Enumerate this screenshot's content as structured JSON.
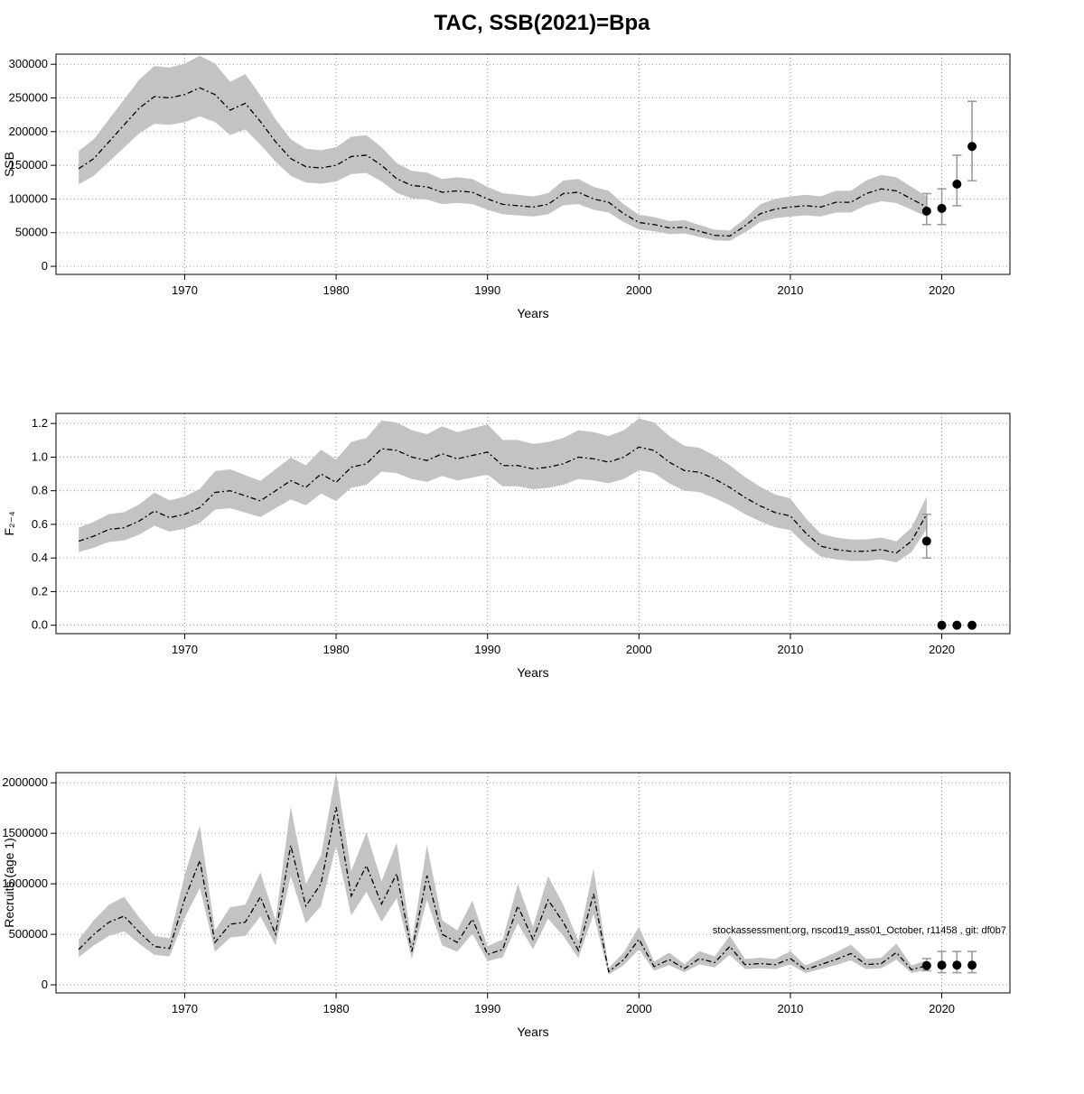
{
  "title": "TAC, SSB(2021)=Bpa",
  "chart_data": [
    {
      "type": "line",
      "name": "ssb",
      "xlabel": "Years",
      "ylabel": "SSB",
      "xlim": [
        1961.5,
        2024.5
      ],
      "ylim": [
        -12000,
        315000
      ],
      "xticks": [
        1970,
        1980,
        1990,
        2000,
        2010,
        2020
      ],
      "yticks": [
        0,
        50000,
        100000,
        150000,
        200000,
        250000,
        300000
      ],
      "ytick_labels": [
        "0",
        "50000",
        "100000",
        "150000",
        "200000",
        "250000",
        "300000"
      ],
      "years": [
        1963,
        1964,
        1965,
        1966,
        1967,
        1968,
        1969,
        1970,
        1971,
        1972,
        1973,
        1974,
        1975,
        1976,
        1977,
        1978,
        1979,
        1980,
        1981,
        1982,
        1983,
        1984,
        1985,
        1986,
        1987,
        1988,
        1989,
        1990,
        1991,
        1992,
        1993,
        1994,
        1995,
        1996,
        1997,
        1998,
        1999,
        2000,
        2001,
        2002,
        2003,
        2004,
        2005,
        2006,
        2007,
        2008,
        2009,
        2010,
        2011,
        2012,
        2013,
        2014,
        2015,
        2016,
        2017,
        2018,
        2019
      ],
      "median": [
        145000,
        160000,
        185000,
        210000,
        235000,
        252000,
        250000,
        255000,
        265000,
        255000,
        232000,
        242000,
        215000,
        185000,
        160000,
        148000,
        146000,
        150000,
        163000,
        165000,
        150000,
        130000,
        120000,
        118000,
        110000,
        112000,
        110000,
        100000,
        92000,
        90000,
        88000,
        92000,
        108000,
        110000,
        100000,
        95000,
        78000,
        65000,
        62000,
        57000,
        58000,
        52000,
        46000,
        45000,
        60000,
        78000,
        85000,
        88000,
        90000,
        88000,
        95000,
        95000,
        108000,
        115000,
        112000,
        100000,
        88000
      ],
      "ci_factor": [
        0.84,
        1.18
      ],
      "forecast": {
        "years": [
          2019,
          2020,
          2021,
          2022
        ],
        "values": [
          82000,
          86000,
          122000,
          178000
        ],
        "lo": [
          62000,
          62000,
          90000,
          127000
        ],
        "hi": [
          108000,
          115000,
          165000,
          245000
        ]
      }
    },
    {
      "type": "line",
      "name": "f",
      "xlabel": "Years",
      "ylabel": "F₂₋₄",
      "xlim": [
        1961.5,
        2024.5
      ],
      "ylim": [
        -0.05,
        1.26
      ],
      "xticks": [
        1970,
        1980,
        1990,
        2000,
        2010,
        2020
      ],
      "yticks": [
        0.0,
        0.2,
        0.4,
        0.6,
        0.8,
        1.0,
        1.2
      ],
      "ytick_labels": [
        "0.0",
        "0.2",
        "0.4",
        "0.6",
        "0.8",
        "1.0",
        "1.2"
      ],
      "years": [
        1963,
        1964,
        1965,
        1966,
        1967,
        1968,
        1969,
        1970,
        1971,
        1972,
        1973,
        1974,
        1975,
        1976,
        1977,
        1978,
        1979,
        1980,
        1981,
        1982,
        1983,
        1984,
        1985,
        1986,
        1987,
        1988,
        1989,
        1990,
        1991,
        1992,
        1993,
        1994,
        1995,
        1996,
        1997,
        1998,
        1999,
        2000,
        2001,
        2002,
        2003,
        2004,
        2005,
        2006,
        2007,
        2008,
        2009,
        2010,
        2011,
        2012,
        2013,
        2014,
        2015,
        2016,
        2017,
        2018,
        2019
      ],
      "median": [
        0.5,
        0.53,
        0.57,
        0.58,
        0.62,
        0.68,
        0.64,
        0.66,
        0.7,
        0.79,
        0.8,
        0.77,
        0.74,
        0.8,
        0.86,
        0.82,
        0.9,
        0.85,
        0.94,
        0.96,
        1.05,
        1.04,
        1.0,
        0.98,
        1.02,
        0.99,
        1.01,
        1.03,
        0.95,
        0.95,
        0.93,
        0.94,
        0.96,
        1.0,
        0.99,
        0.97,
        1.0,
        1.06,
        1.04,
        0.97,
        0.92,
        0.91,
        0.87,
        0.82,
        0.76,
        0.71,
        0.67,
        0.65,
        0.55,
        0.47,
        0.45,
        0.44,
        0.44,
        0.45,
        0.43,
        0.5,
        0.66
      ],
      "ci_factor": [
        0.87,
        1.16
      ],
      "forecast": {
        "years": [
          2019,
          2020,
          2021,
          2022
        ],
        "values": [
          0.5,
          0.0,
          0.0,
          0.0
        ],
        "lo": [
          0.4,
          0.0,
          0.0,
          0.0
        ],
        "hi": [
          0.66,
          0.0,
          0.0,
          0.0
        ]
      }
    },
    {
      "type": "line",
      "name": "recruits",
      "xlabel": "Years",
      "ylabel": "Recruits (age 1)",
      "watermark": "stockassessment.org, nscod19_ass01_October, r11458 , git: df0b7",
      "xlim": [
        1961.5,
        2024.5
      ],
      "ylim": [
        -80000,
        2100000
      ],
      "xticks": [
        1970,
        1980,
        1990,
        2000,
        2010,
        2020
      ],
      "yticks": [
        0,
        500000,
        1000000,
        1500000,
        2000000
      ],
      "ytick_labels": [
        "0",
        "500000",
        "1000000",
        "1500000",
        "2000000"
      ],
      "years": [
        1963,
        1964,
        1965,
        1966,
        1967,
        1968,
        1969,
        1970,
        1971,
        1972,
        1973,
        1974,
        1975,
        1976,
        1977,
        1978,
        1979,
        1980,
        1981,
        1982,
        1983,
        1984,
        1985,
        1986,
        1987,
        1988,
        1989,
        1990,
        1991,
        1992,
        1993,
        1994,
        1995,
        1996,
        1997,
        1998,
        1999,
        2000,
        2001,
        2002,
        2003,
        2004,
        2005,
        2006,
        2007,
        2008,
        2009,
        2010,
        2011,
        2012,
        2013,
        2014,
        2015,
        2016,
        2017,
        2018,
        2019
      ],
      "median": [
        350000,
        500000,
        620000,
        680000,
        520000,
        380000,
        360000,
        850000,
        1230000,
        420000,
        600000,
        620000,
        870000,
        500000,
        1380000,
        780000,
        1000000,
        1760000,
        880000,
        1180000,
        800000,
        1100000,
        330000,
        1080000,
        500000,
        420000,
        650000,
        300000,
        350000,
        780000,
        450000,
        840000,
        620000,
        340000,
        900000,
        130000,
        250000,
        450000,
        180000,
        250000,
        160000,
        260000,
        220000,
        380000,
        200000,
        210000,
        200000,
        260000,
        150000,
        200000,
        250000,
        310000,
        200000,
        210000,
        320000,
        150000,
        190000
      ],
      "ci_factor": [
        0.78,
        1.28
      ],
      "forecast": {
        "years": [
          2019,
          2020,
          2021,
          2022
        ],
        "values": [
          190000,
          195000,
          195000,
          195000
        ],
        "lo": [
          140000,
          120000,
          120000,
          120000
        ],
        "hi": [
          260000,
          330000,
          330000,
          330000
        ]
      }
    }
  ]
}
